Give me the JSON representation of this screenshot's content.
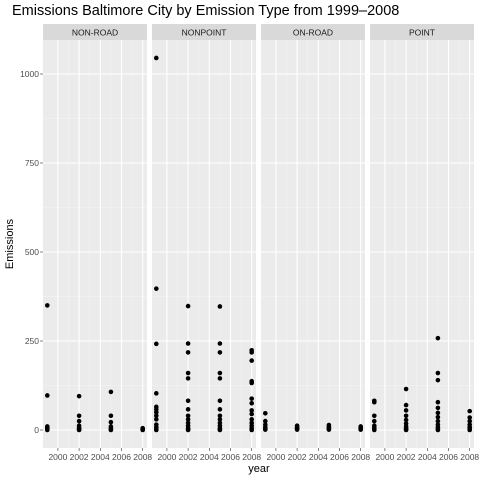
{
  "chart_data": {
    "type": "scatter",
    "title": "Emissions Baltimore City by Emission Type from 1999–2008",
    "xlabel": "year",
    "ylabel": "Emissions",
    "x_ticks": [
      2000,
      2002,
      2004,
      2006,
      2008
    ],
    "x_tick_labels": [
      "2000",
      "2002",
      "2004",
      "2006",
      "2008"
    ],
    "y_ticks": [
      0,
      250,
      500,
      750,
      1000
    ],
    "y_tick_labels": [
      "0",
      "250",
      "500",
      "750",
      "1000"
    ],
    "xlim": [
      1999,
      2008
    ],
    "ylim": [
      0,
      1045
    ],
    "grid": true,
    "facets": [
      {
        "label": "NON-ROAD",
        "points": [
          [
            1999,
            350
          ],
          [
            1999,
            97
          ],
          [
            1999,
            10
          ],
          [
            1999,
            6
          ],
          [
            1999,
            3
          ],
          [
            1999,
            1
          ],
          [
            1999,
            0
          ],
          [
            2002,
            95
          ],
          [
            2002,
            40
          ],
          [
            2002,
            25
          ],
          [
            2002,
            12
          ],
          [
            2002,
            6
          ],
          [
            2002,
            3
          ],
          [
            2002,
            1
          ],
          [
            2002,
            0
          ],
          [
            2005,
            107
          ],
          [
            2005,
            40
          ],
          [
            2005,
            22
          ],
          [
            2005,
            10
          ],
          [
            2005,
            5
          ],
          [
            2005,
            2
          ],
          [
            2005,
            0
          ],
          [
            2008,
            5
          ],
          [
            2008,
            3
          ],
          [
            2008,
            2
          ],
          [
            2008,
            1
          ],
          [
            2008,
            0
          ]
        ]
      },
      {
        "label": "NONPOINT",
        "points": [
          [
            1999,
            1045
          ],
          [
            1999,
            397
          ],
          [
            1999,
            242
          ],
          [
            1999,
            103
          ],
          [
            1999,
            65
          ],
          [
            1999,
            58
          ],
          [
            1999,
            50
          ],
          [
            1999,
            40
          ],
          [
            1999,
            30
          ],
          [
            1999,
            15
          ],
          [
            1999,
            8
          ],
          [
            1999,
            3
          ],
          [
            1999,
            0
          ],
          [
            2002,
            348
          ],
          [
            2002,
            243
          ],
          [
            2002,
            218
          ],
          [
            2002,
            160
          ],
          [
            2002,
            145
          ],
          [
            2002,
            82
          ],
          [
            2002,
            58
          ],
          [
            2002,
            40
          ],
          [
            2002,
            30
          ],
          [
            2002,
            20
          ],
          [
            2002,
            12
          ],
          [
            2002,
            5
          ],
          [
            2002,
            2
          ],
          [
            2002,
            0
          ],
          [
            2005,
            347
          ],
          [
            2005,
            243
          ],
          [
            2005,
            218
          ],
          [
            2005,
            160
          ],
          [
            2005,
            145
          ],
          [
            2005,
            82
          ],
          [
            2005,
            58
          ],
          [
            2005,
            40
          ],
          [
            2005,
            30
          ],
          [
            2005,
            20
          ],
          [
            2005,
            12
          ],
          [
            2005,
            5
          ],
          [
            2005,
            2
          ],
          [
            2005,
            0
          ],
          [
            2008,
            224
          ],
          [
            2008,
            218
          ],
          [
            2008,
            195
          ],
          [
            2008,
            137
          ],
          [
            2008,
            132
          ],
          [
            2008,
            88
          ],
          [
            2008,
            75
          ],
          [
            2008,
            55
          ],
          [
            2008,
            45
          ],
          [
            2008,
            30
          ],
          [
            2008,
            20
          ],
          [
            2008,
            12
          ],
          [
            2008,
            5
          ],
          [
            2008,
            0
          ]
        ]
      },
      {
        "label": "ON-ROAD",
        "points": [
          [
            1999,
            47
          ],
          [
            1999,
            25
          ],
          [
            1999,
            15
          ],
          [
            1999,
            8
          ],
          [
            1999,
            4
          ],
          [
            1999,
            1
          ],
          [
            2002,
            12
          ],
          [
            2002,
            8
          ],
          [
            2002,
            5
          ],
          [
            2002,
            3
          ],
          [
            2002,
            1
          ],
          [
            2005,
            14
          ],
          [
            2005,
            9
          ],
          [
            2005,
            6
          ],
          [
            2005,
            3
          ],
          [
            2005,
            1
          ],
          [
            2008,
            10
          ],
          [
            2008,
            6
          ],
          [
            2008,
            4
          ],
          [
            2008,
            2
          ],
          [
            2008,
            1
          ]
        ]
      },
      {
        "label": "POINT",
        "points": [
          [
            1999,
            82
          ],
          [
            1999,
            78
          ],
          [
            1999,
            40
          ],
          [
            1999,
            25
          ],
          [
            1999,
            12
          ],
          [
            1999,
            6
          ],
          [
            1999,
            2
          ],
          [
            1999,
            0
          ],
          [
            2002,
            115
          ],
          [
            2002,
            70
          ],
          [
            2002,
            55
          ],
          [
            2002,
            40
          ],
          [
            2002,
            28
          ],
          [
            2002,
            18
          ],
          [
            2002,
            10
          ],
          [
            2002,
            5
          ],
          [
            2002,
            2
          ],
          [
            2002,
            0
          ],
          [
            2005,
            258
          ],
          [
            2005,
            160
          ],
          [
            2005,
            140
          ],
          [
            2005,
            78
          ],
          [
            2005,
            62
          ],
          [
            2005,
            48
          ],
          [
            2005,
            36
          ],
          [
            2005,
            25
          ],
          [
            2005,
            15
          ],
          [
            2005,
            8
          ],
          [
            2005,
            3
          ],
          [
            2005,
            0
          ],
          [
            2008,
            53
          ],
          [
            2008,
            35
          ],
          [
            2008,
            25
          ],
          [
            2008,
            15
          ],
          [
            2008,
            8
          ],
          [
            2008,
            3
          ],
          [
            2008,
            0
          ]
        ]
      }
    ]
  }
}
